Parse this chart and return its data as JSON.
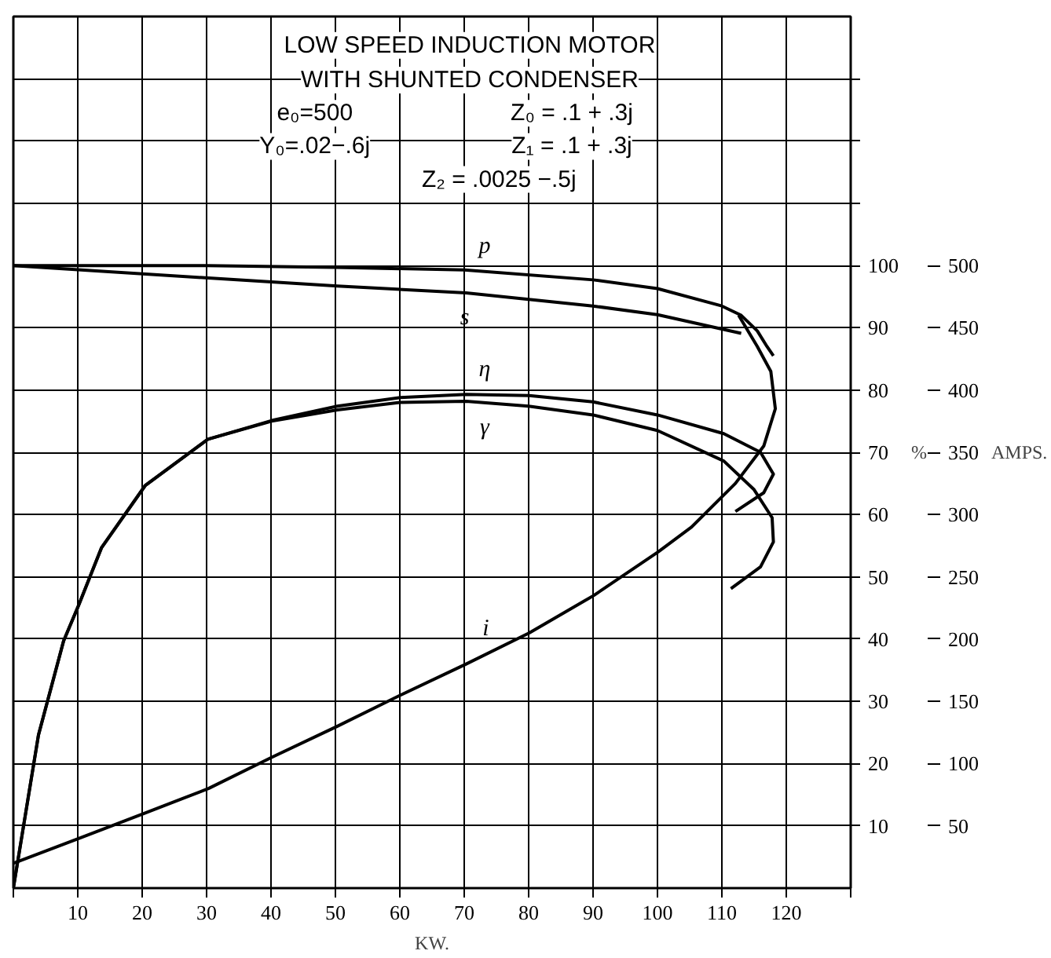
{
  "chart_data": {
    "type": "line",
    "title": "LOW SPEED INDUCTION MOTOR\nWITH SHUNTED CONDENSER",
    "xlabel": "KW.",
    "ylabel": "%",
    "y2label": "AMPS.",
    "xlim": [
      0,
      130
    ],
    "ylim": [
      0,
      140
    ],
    "y2lim": [
      0,
      700
    ],
    "xticks": [
      {
        "value": 0,
        "label": null
      },
      10,
      20,
      30,
      40,
      50,
      60,
      70,
      80,
      90,
      100,
      110,
      120,
      {
        "value": 130,
        "label": null
      }
    ],
    "yticks": [
      10,
      20,
      30,
      40,
      50,
      60,
      70,
      80,
      90,
      100,
      {
        "value": 110,
        "label": null
      },
      {
        "value": 120,
        "label": null
      },
      {
        "value": 130,
        "label": null
      }
    ],
    "y2ticks": [
      50,
      100,
      150,
      200,
      250,
      300,
      350,
      400,
      450,
      500
    ],
    "grid": true,
    "marker": "none",
    "line_style": "solid",
    "series": [
      {
        "name": "p",
        "color": "#000000",
        "x": [
          0,
          30,
          50,
          70,
          90,
          100,
          110,
          113,
          115.5,
          117,
          118
        ],
        "values": [
          100,
          100,
          99.7,
          99.3,
          97.7,
          96.3,
          93.5,
          92,
          89.5,
          87,
          85.5
        ]
      },
      {
        "name": "s",
        "color": "#000000",
        "x": [
          0,
          30.3,
          50.3,
          70.3,
          90,
          100,
          113
        ],
        "values": [
          100,
          98,
          96.7,
          95.6,
          93.5,
          92.1,
          89.1
        ]
      },
      {
        "name": "η",
        "color": "#000000",
        "x": [
          0,
          3.9,
          7.8,
          10.2,
          13.7,
          20.5,
          30.2,
          40.1,
          50.3,
          60.1,
          70.3,
          80.1,
          90,
          100,
          110.3,
          116,
          118,
          116.5,
          112.1
        ],
        "values": [
          0,
          24.6,
          39.7,
          45.6,
          54.7,
          64.7,
          72.1,
          75.1,
          77.4,
          78.8,
          79.3,
          79.1,
          78.1,
          76,
          73,
          70,
          66.5,
          63.5,
          60.5
        ]
      },
      {
        "name": "γ",
        "color": "#000000",
        "x": [
          0,
          3.9,
          7.8,
          10.2,
          13.7,
          20.5,
          30.2,
          40.1,
          50.3,
          60,
          70.3,
          80,
          90,
          100,
          110.3,
          115,
          117.8,
          118,
          116,
          111.4
        ],
        "values": [
          0,
          24.6,
          39.7,
          45.6,
          54.7,
          64.7,
          72.1,
          75,
          76.8,
          78,
          78.2,
          77.4,
          76,
          73.5,
          68.6,
          64,
          59.5,
          55.6,
          51.6,
          48.1
        ]
      },
      {
        "name": "i",
        "color": "#000000",
        "axis": "y2",
        "x": [
          0,
          10.2,
          20.3,
          30.3,
          40.1,
          50.3,
          60.1,
          70.3,
          80.1,
          90.1,
          100.1,
          105.3,
          112.1,
          116.5,
          118.3,
          117.6,
          115.5,
          112.6
        ],
        "values": [
          20,
          40,
          60,
          80,
          105,
          130,
          155,
          180,
          205,
          235,
          270,
          290,
          325,
          355,
          385,
          415,
          435,
          460
        ]
      }
    ],
    "annotations": [
      "e₀=500",
      "Z₀ = .1 + .3j",
      "Y₀=.02−.6j",
      "Z₁ = .1 + .3j",
      "Z₂ = .0025 −.5j"
    ]
  }
}
